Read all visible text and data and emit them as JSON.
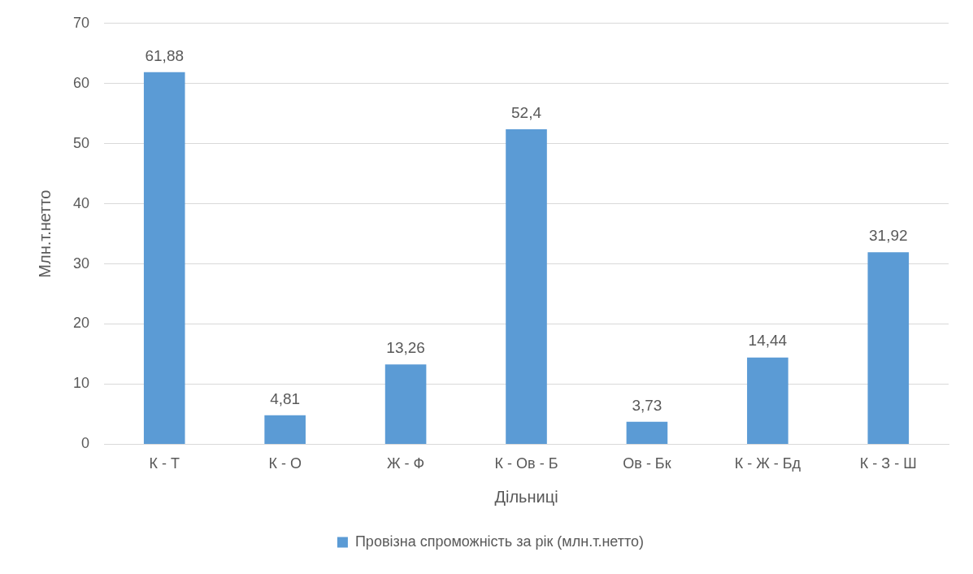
{
  "chart_data": {
    "type": "bar",
    "xlabel": "Дільниці",
    "ylabel": "Млн.т.нетто",
    "categories": [
      "К - Т",
      "К - О",
      "Ж - Ф",
      "К - Ов - Б",
      "Ов - Бк",
      "К - Ж - Бд",
      "К - З - Ш"
    ],
    "series": [
      {
        "name": "Провізна спроможність за рік (млн.т.нетто)",
        "color": "#5b9bd5",
        "values": [
          61.88,
          4.81,
          13.26,
          52.4,
          3.73,
          14.44,
          31.92
        ],
        "value_labels": [
          "61,88",
          "4,81",
          "13,26",
          "52,4",
          "3,73",
          "14,44",
          "31,92"
        ]
      }
    ],
    "ylim": [
      0,
      70
    ],
    "yticks": [
      0,
      10,
      20,
      30,
      40,
      50,
      60,
      70
    ],
    "grid": "y",
    "legend": "bottom"
  }
}
